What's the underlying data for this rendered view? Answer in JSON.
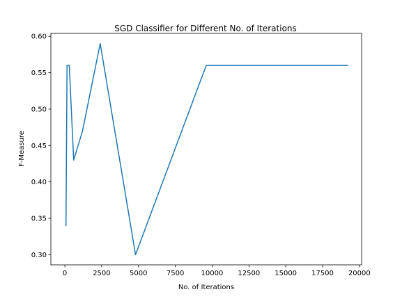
{
  "chart_data": {
    "type": "line",
    "title": "SGD Classifier for Different No. of Iterations",
    "xlabel": "No. of Iterations",
    "ylabel": "F-Measure",
    "xlim": [
      -950,
      20150
    ],
    "ylim": [
      0.286,
      0.604
    ],
    "xticks": [
      0,
      2500,
      5000,
      7500,
      10000,
      12500,
      15000,
      17500,
      20000
    ],
    "xtick_labels": [
      "0",
      "2500",
      "5000",
      "7500",
      "10000",
      "12500",
      "15000",
      "17500",
      "20000"
    ],
    "yticks": [
      0.3,
      0.35,
      0.4,
      0.45,
      0.5,
      0.55,
      0.6
    ],
    "ytick_labels": [
      "0.30",
      "0.35",
      "0.40",
      "0.45",
      "0.50",
      "0.55",
      "0.60"
    ],
    "grid": false,
    "series": [
      {
        "color": "#1f77b4",
        "x": [
          75,
          150,
          300,
          600,
          1200,
          2400,
          4800,
          9600,
          19200
        ],
        "y": [
          0.34,
          0.56,
          0.56,
          0.43,
          0.47,
          0.59,
          0.3,
          0.56,
          0.56
        ]
      }
    ]
  }
}
